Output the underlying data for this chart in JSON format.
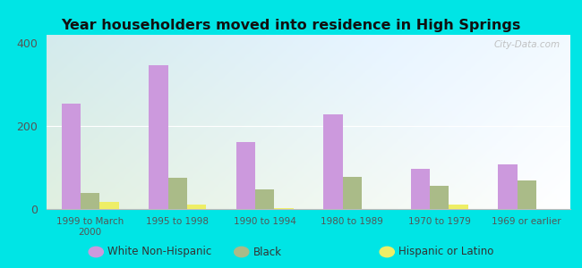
{
  "title": "Year householders moved into residence in High Springs",
  "categories": [
    "1999 to March\n2000",
    "1995 to 1998",
    "1990 to 1994",
    "1980 to 1989",
    "1970 to 1979",
    "1969 or earlier"
  ],
  "white_non_hispanic": [
    255,
    347,
    162,
    228,
    97,
    107
  ],
  "black": [
    38,
    75,
    47,
    78,
    57,
    68
  ],
  "hispanic_or_latino": [
    18,
    10,
    3,
    0,
    10,
    0
  ],
  "bar_colors": {
    "white": "#cc99dd",
    "black": "#aabb88",
    "hispanic": "#eeee66"
  },
  "background_outer": "#00e5e5",
  "ylim": [
    0,
    420
  ],
  "yticks": [
    0,
    200,
    400
  ],
  "bar_width": 0.22,
  "watermark": "City-Data.com",
  "legend_labels": [
    "White Non-Hispanic",
    "Black",
    "Hispanic or Latino"
  ]
}
